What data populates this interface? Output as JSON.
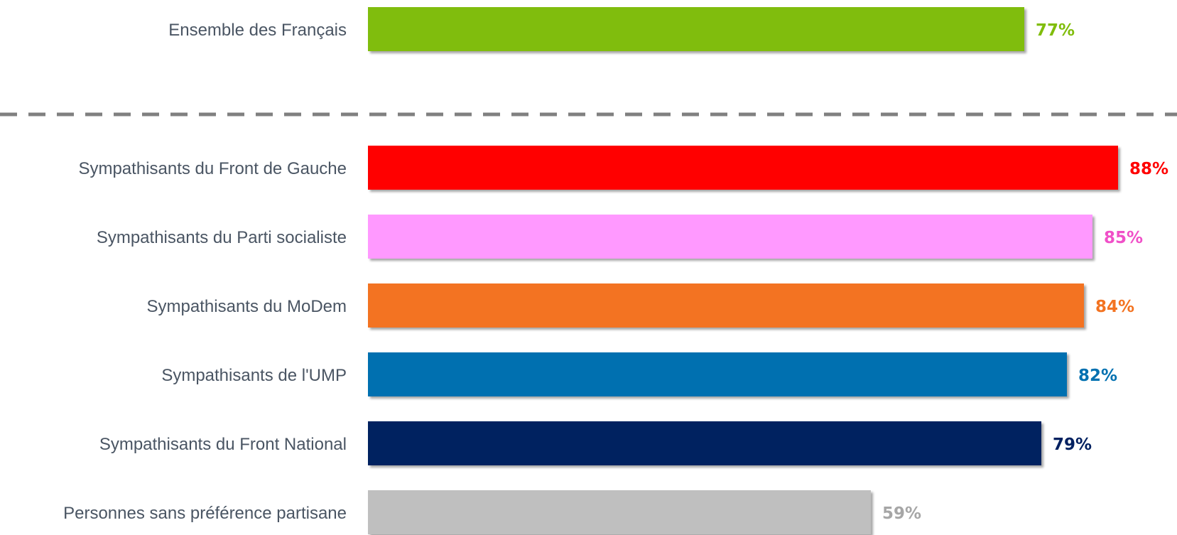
{
  "chart_data": {
    "type": "bar",
    "orientation": "horizontal",
    "unit": "%",
    "xlim": [
      0,
      100
    ],
    "grid": false,
    "legend": "none",
    "separator": "dashed line after first bar",
    "categories": [
      "Ensemble des Français",
      "Sympathisants du Front de Gauche",
      "Sympathisants du Parti socialiste",
      "Sympathisants du MoDem",
      "Sympathisants de l'UMP",
      "Sympathisants du Front National",
      "Personnes sans préférence partisane"
    ],
    "values": [
      77,
      88,
      85,
      84,
      82,
      79,
      59
    ],
    "value_labels": [
      "77%",
      "88%",
      "85%",
      "84%",
      "82%",
      "79%",
      "59%"
    ],
    "colors": [
      "#80bd0b",
      "#ff0000",
      "#ff99ff",
      "#f37321",
      "#0070b0",
      "#002060",
      "#bfbfbf"
    ],
    "label_colors": [
      "#80bd0b",
      "#ff0000",
      "#f050c8",
      "#f37321",
      "#0070b0",
      "#002060",
      "#a6a6a6"
    ]
  }
}
